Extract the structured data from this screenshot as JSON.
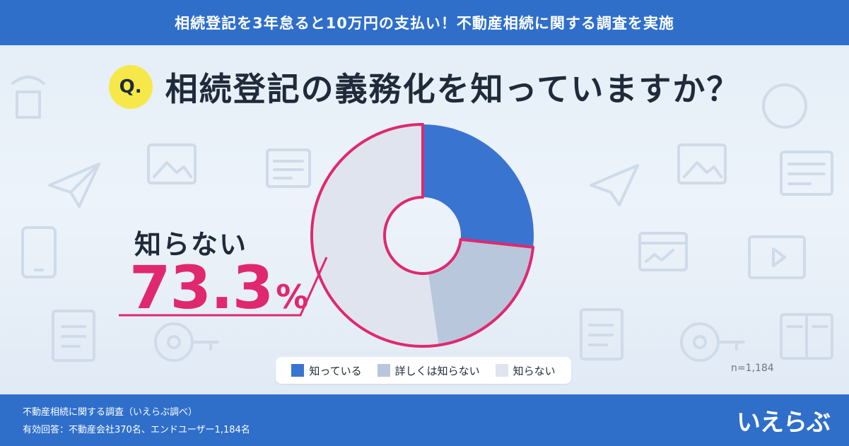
{
  "banner": {
    "title": "相続登記を3年怠ると10万円の支払い！不動産相続に関する調査を実施"
  },
  "question": {
    "badge": "Q.",
    "text": "相続登記の義務化を知っていますか？"
  },
  "callout": {
    "label": "知らない",
    "value": "73.3",
    "unit": "%"
  },
  "chart_data": {
    "type": "pie",
    "title": "",
    "categories": [
      "知っている",
      "詳しくは知らない",
      "知らない"
    ],
    "values": [
      26.7,
      21.0,
      52.3
    ],
    "colors": [
      "#3a74d1",
      "#b9c7dc",
      "#dfe4ee"
    ],
    "highlight_color": "#e0286e",
    "highlighted_categories": [
      "詳しくは知らない",
      "知らない"
    ],
    "highlighted_total": 73.3,
    "legend_position": "bottom",
    "sample_size": "n=1,184"
  },
  "legend": {
    "items": [
      {
        "label": "知っている",
        "color": "#3a74d1"
      },
      {
        "label": "詳しくは知らない",
        "color": "#b9c7dc"
      },
      {
        "label": "知らない",
        "color": "#dfe4ee"
      }
    ]
  },
  "footer": {
    "line1": "不動産相続に関する調査（いえらぶ調べ）",
    "line2": "有効回答：不動産会社370名、エンドユーザー1,184名",
    "logo": "いえらぶ"
  },
  "colors": {
    "brand_blue": "#2f6fca",
    "accent_pink": "#e0286e",
    "badge_yellow": "#f7e84a"
  }
}
